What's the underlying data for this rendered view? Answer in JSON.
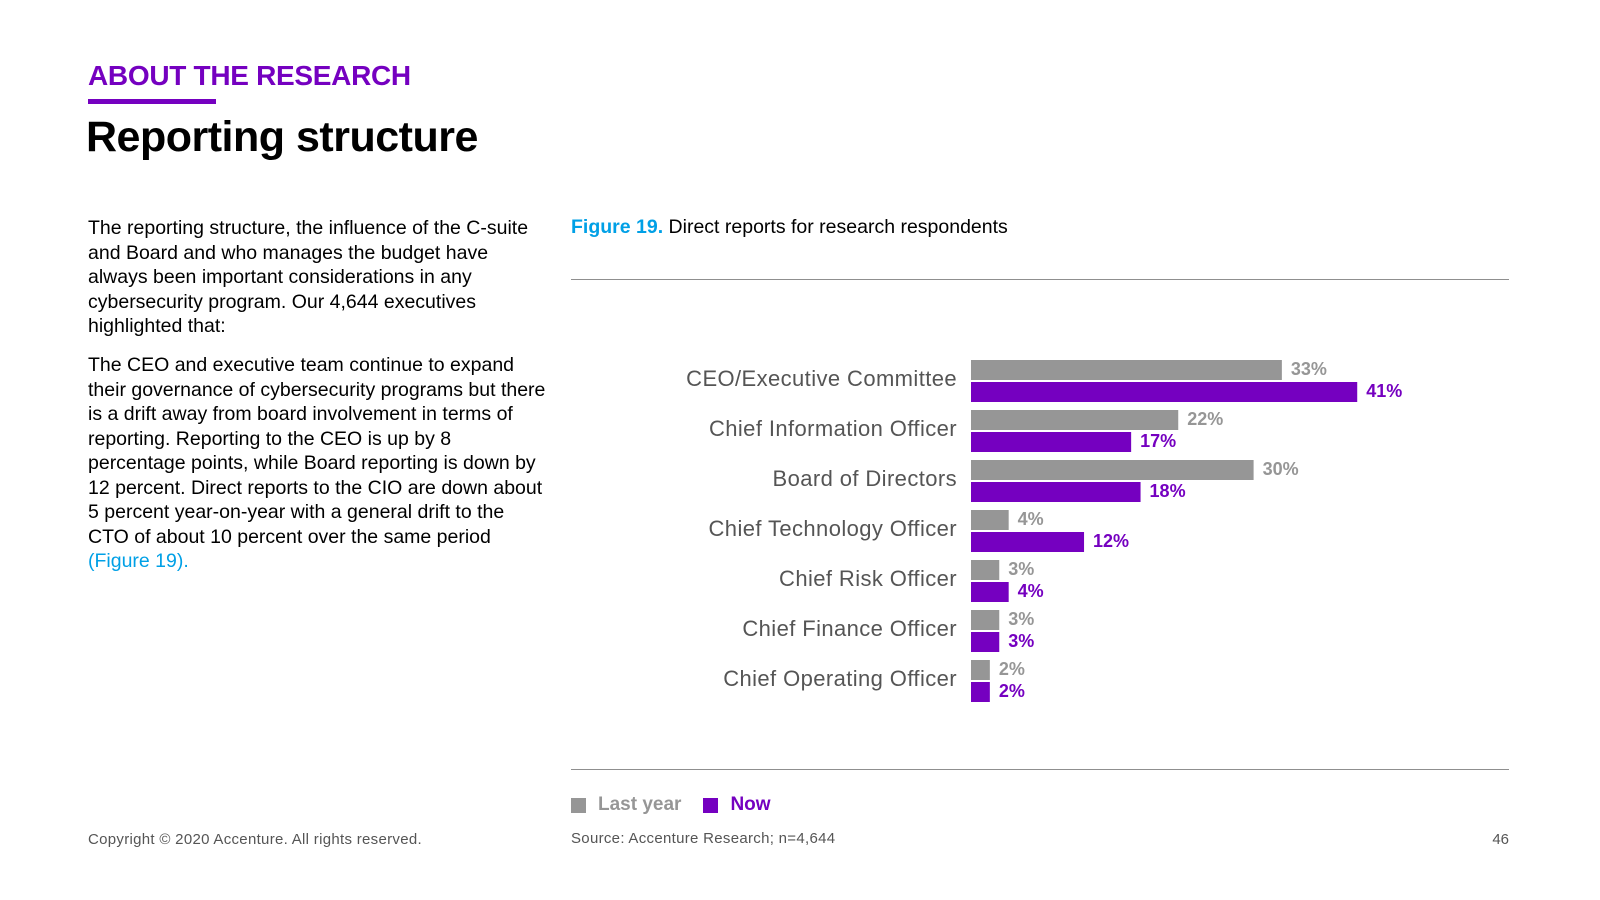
{
  "header": {
    "eyebrow": "ABOUT THE RESEARCH",
    "title": "Reporting structure"
  },
  "body": {
    "paragraph1": "The reporting structure, the influence of the C-suite and Board and who manages the budget have always been important considerations in any cybersecurity program. Our 4,644 executives highlighted that:",
    "paragraph2": "The CEO and executive team continue to expand their governance of cybersecurity programs but there is a drift away from board involvement in terms of reporting. Reporting to the CEO is up by 8 percentage points, while Board reporting is down by 12 percent. Direct reports to the CIO are down about 5 percent year-on-year with a general drift to the CTO of about 10 percent over the same period",
    "paragraph2_link": "(Figure 19)."
  },
  "figure": {
    "number": "Figure 19.",
    "caption": "Direct reports for research respondents",
    "source": "Source: Accenture Research; n=4,644"
  },
  "colors": {
    "last_year": "#969696",
    "now": "#7500c0",
    "accent_blue": "#00a0e6"
  },
  "chart_data": {
    "type": "bar",
    "orientation": "horizontal",
    "title": "Direct reports for research respondents",
    "xlabel": "",
    "ylabel": "",
    "unit": "%",
    "xlim": [
      0,
      50
    ],
    "grid": false,
    "legend_position": "bottom-left",
    "categories": [
      "CEO/Executive Committee",
      "Chief Information Officer",
      "Board of Directors",
      "Chief Technology Officer",
      "Chief Risk Officer",
      "Chief Finance Officer",
      "Chief Operating Officer"
    ],
    "series": [
      {
        "name": "Last year",
        "color": "#969696",
        "values": [
          33,
          22,
          30,
          4,
          3,
          3,
          2
        ]
      },
      {
        "name": "Now",
        "color": "#7500c0",
        "values": [
          41,
          17,
          18,
          12,
          4,
          3,
          2
        ]
      }
    ]
  },
  "footer": {
    "copyright": "Copyright © 2020 Accenture. All rights reserved.",
    "page_number": "46"
  }
}
